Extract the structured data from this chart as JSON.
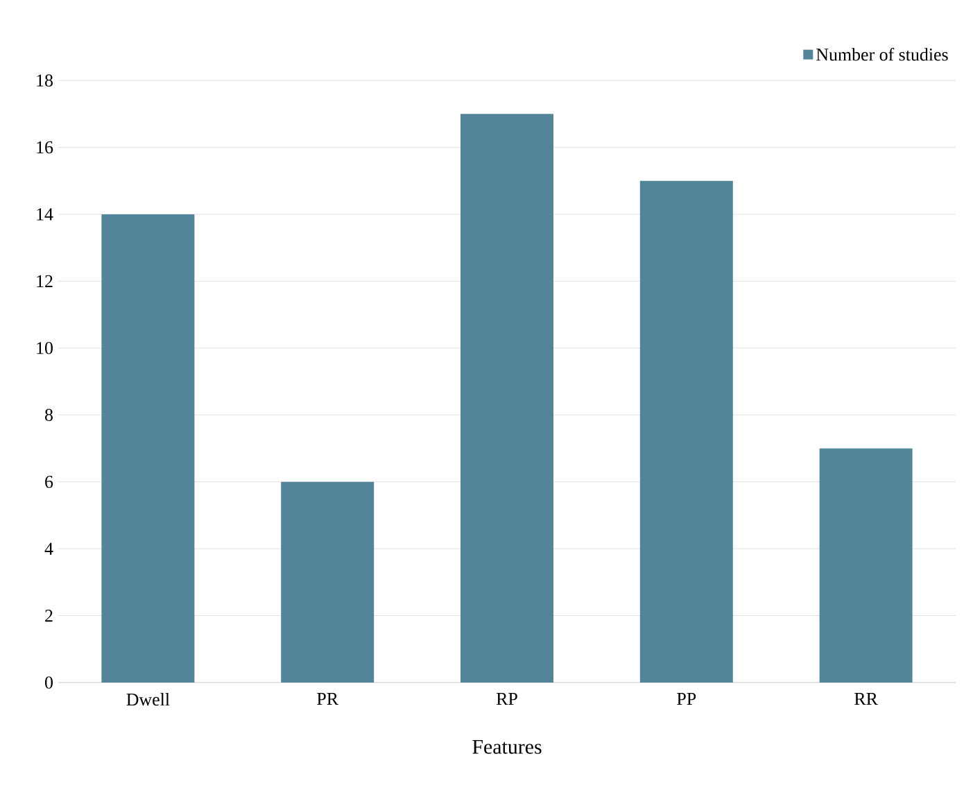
{
  "chart_data": {
    "type": "bar",
    "xlabel": "Features",
    "categories": [
      "Dwell",
      "PR",
      "RP",
      "PP",
      "RR"
    ],
    "series": [
      {
        "name": "Number of studies",
        "color": "#53849a",
        "values": [
          14,
          6,
          17,
          15,
          7
        ]
      }
    ],
    "ylim": [
      0,
      18
    ],
    "yticks": [
      0,
      2,
      4,
      6,
      8,
      10,
      12,
      14,
      16,
      18
    ],
    "grid": "y",
    "legend": "top right"
  }
}
